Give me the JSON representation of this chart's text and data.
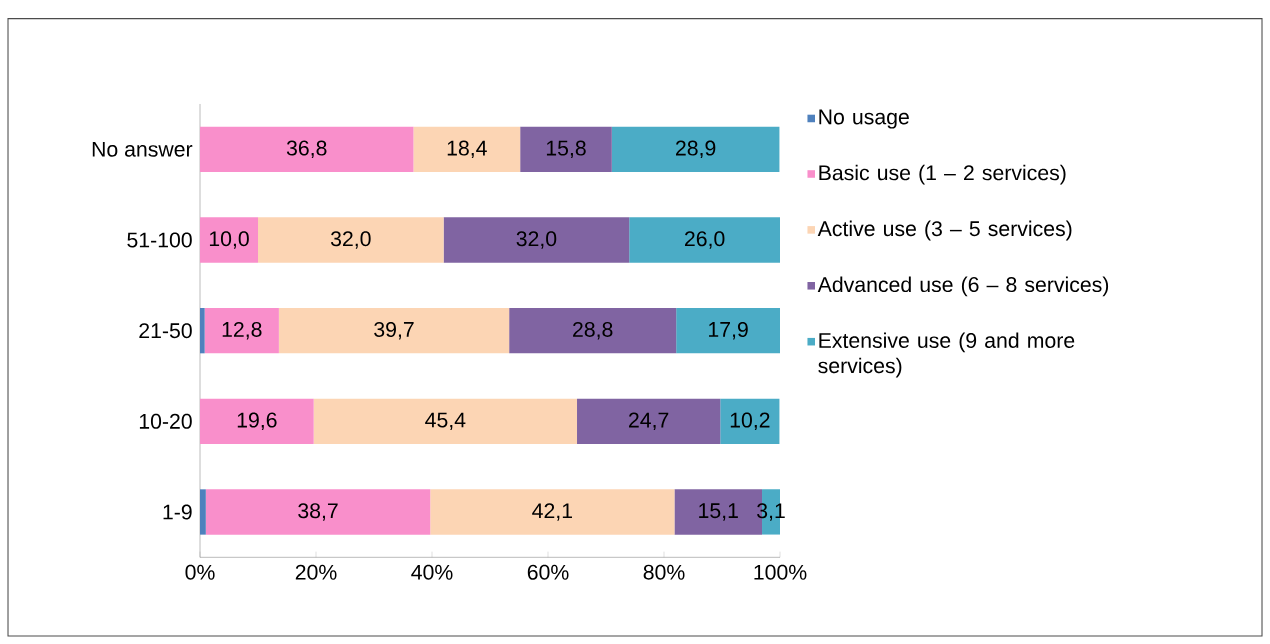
{
  "chart_data": {
    "type": "bar",
    "orientation": "horizontal",
    "stacked": true,
    "categories": [
      "No answer",
      "51-100",
      "21-50",
      "10-20",
      "1-9"
    ],
    "series": [
      {
        "name": "No usage",
        "color": "#4f81bd",
        "values": [
          0,
          0,
          0.8,
          0,
          1.0
        ],
        "value_labels": [
          null,
          null,
          null,
          null,
          null
        ]
      },
      {
        "name": "Basic use (1 – 2 services)",
        "color": "#f98fcb",
        "values": [
          36.8,
          10.0,
          12.8,
          19.6,
          38.7
        ],
        "value_labels": [
          "36,8",
          "10,0",
          "12,8",
          "19,6",
          "38,7"
        ]
      },
      {
        "name": "Active use (3 – 5 services)",
        "color": "#fcd5b4",
        "values": [
          18.4,
          32.0,
          39.7,
          45.4,
          42.1
        ],
        "value_labels": [
          "18,4",
          "32,0",
          "39,7",
          "45,4",
          "42,1"
        ]
      },
      {
        "name": "Advanced use (6 – 8 services)",
        "color": "#8064a2",
        "values": [
          15.8,
          32.0,
          28.8,
          24.7,
          15.1
        ],
        "value_labels": [
          "15,8",
          "32,0",
          "28,8",
          "24,7",
          "15,1"
        ]
      },
      {
        "name": "Extensive use (9 and more services)",
        "color": "#4bacc6",
        "values": [
          28.9,
          26.0,
          17.9,
          10.2,
          3.1
        ],
        "value_labels": [
          "28,9",
          "26,0",
          "17,9",
          "10,2",
          "3,1"
        ]
      }
    ],
    "xlim": [
      0,
      100
    ],
    "xticks": [
      {
        "value": 0,
        "label": "0%"
      },
      {
        "value": 20,
        "label": "20%"
      },
      {
        "value": 40,
        "label": "40%"
      },
      {
        "value": 60,
        "label": "60%"
      },
      {
        "value": 80,
        "label": "80%"
      },
      {
        "value": 100,
        "label": "100%"
      }
    ],
    "legend": "right"
  }
}
